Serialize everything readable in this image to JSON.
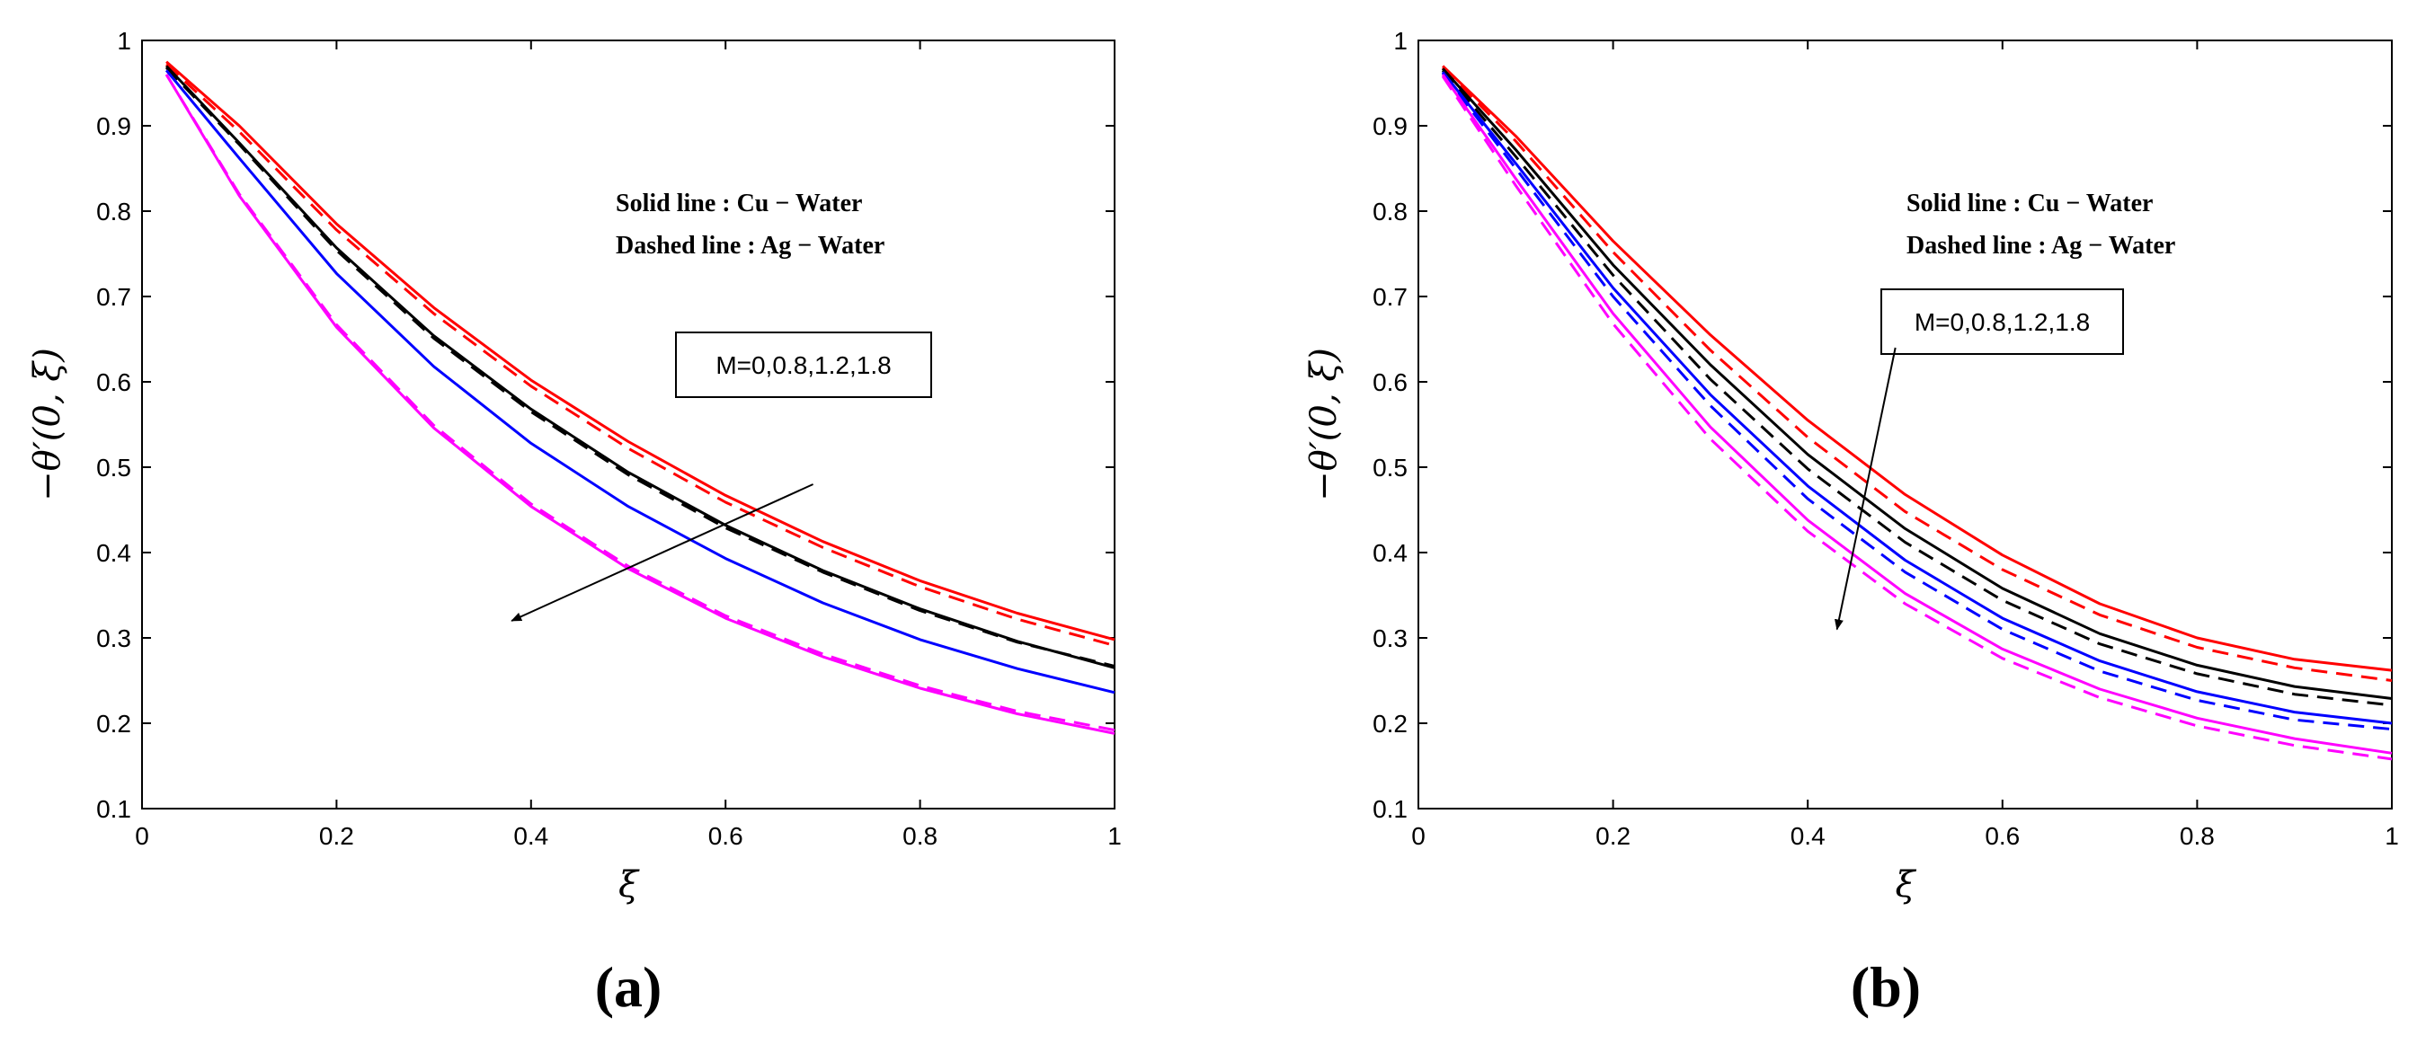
{
  "chart_data": [
    {
      "type": "line",
      "panel_label": "(a)",
      "xlabel": "ξ",
      "ylabel": "−θ′(0, ξ)",
      "xlim": [
        0,
        1
      ],
      "ylim": [
        0.1,
        1
      ],
      "x_ticks": [
        "0",
        "0.2",
        "0.4",
        "0.6",
        "0.8",
        "1"
      ],
      "y_ticks": [
        "0.1",
        "0.2",
        "0.3",
        "0.4",
        "0.5",
        "0.6",
        "0.7",
        "0.8",
        "0.9",
        "1"
      ],
      "legend_lines": [
        "Solid line : Cu − Water",
        "Dashed line : Ag − Water"
      ],
      "annotation": {
        "text": "M=0,0.8,1.2,1.8",
        "arrow_from": [
          0.69,
          0.48
        ],
        "arrow_to": [
          0.38,
          0.32
        ]
      },
      "grid": false,
      "x": [
        0.025,
        0.1,
        0.2,
        0.3,
        0.4,
        0.5,
        0.6,
        0.7,
        0.8,
        0.9,
        1.0
      ],
      "series": [
        {
          "color": "#ff0000",
          "dash": false,
          "values": [
            0.975,
            0.9,
            0.785,
            0.687,
            0.602,
            0.53,
            0.467,
            0.413,
            0.367,
            0.329,
            0.298
          ]
        },
        {
          "color": "#ff0000",
          "dash": true,
          "values": [
            0.972,
            0.893,
            0.778,
            0.68,
            0.595,
            0.522,
            0.459,
            0.406,
            0.36,
            0.322,
            0.291
          ]
        },
        {
          "color": "#000000",
          "dash": false,
          "values": [
            0.97,
            0.88,
            0.757,
            0.654,
            0.568,
            0.494,
            0.432,
            0.379,
            0.334,
            0.296,
            0.265
          ]
        },
        {
          "color": "#000000",
          "dash": true,
          "values": [
            0.968,
            0.878,
            0.754,
            0.651,
            0.565,
            0.491,
            0.429,
            0.377,
            0.332,
            0.295,
            0.267
          ]
        },
        {
          "color": "#0000ff",
          "dash": false,
          "values": [
            0.965,
            0.862,
            0.727,
            0.618,
            0.528,
            0.454,
            0.393,
            0.341,
            0.298,
            0.264,
            0.236
          ]
        },
        {
          "color": "#ff00ff",
          "dash": false,
          "values": [
            0.96,
            0.818,
            0.664,
            0.546,
            0.454,
            0.381,
            0.323,
            0.278,
            0.241,
            0.211,
            0.188
          ]
        },
        {
          "color": "#ff00ff",
          "dash": true,
          "values": [
            0.96,
            0.82,
            0.667,
            0.549,
            0.457,
            0.384,
            0.326,
            0.281,
            0.244,
            0.214,
            0.192
          ]
        }
      ]
    },
    {
      "type": "line",
      "panel_label": "(b)",
      "xlabel": "ξ",
      "ylabel": "−θ′(0, ξ)",
      "xlim": [
        0,
        1
      ],
      "ylim": [
        0.1,
        1
      ],
      "x_ticks": [
        "0",
        "0.2",
        "0.4",
        "0.6",
        "0.8",
        "1"
      ],
      "y_ticks": [
        "0.1",
        "0.2",
        "0.3",
        "0.4",
        "0.5",
        "0.6",
        "0.7",
        "0.8",
        "0.9",
        "1"
      ],
      "legend_lines": [
        "Solid line : Cu − Water",
        "Dashed line : Ag − Water"
      ],
      "annotation": {
        "text": "M=0,0.8,1.2,1.8",
        "arrow_from": [
          0.49,
          0.64
        ],
        "arrow_to": [
          0.43,
          0.31
        ]
      },
      "grid": false,
      "x": [
        0.025,
        0.1,
        0.2,
        0.3,
        0.4,
        0.5,
        0.6,
        0.7,
        0.8,
        0.9,
        1.0
      ],
      "series": [
        {
          "color": "#ff0000",
          "dash": false,
          "values": [
            0.97,
            0.888,
            0.765,
            0.655,
            0.555,
            0.468,
            0.397,
            0.34,
            0.3,
            0.275,
            0.262
          ]
        },
        {
          "color": "#ff0000",
          "dash": true,
          "values": [
            0.968,
            0.882,
            0.752,
            0.637,
            0.535,
            0.448,
            0.38,
            0.327,
            0.289,
            0.265,
            0.25
          ]
        },
        {
          "color": "#000000",
          "dash": false,
          "values": [
            0.967,
            0.872,
            0.737,
            0.62,
            0.515,
            0.428,
            0.358,
            0.305,
            0.268,
            0.243,
            0.229
          ]
        },
        {
          "color": "#000000",
          "dash": true,
          "values": [
            0.965,
            0.864,
            0.725,
            0.603,
            0.498,
            0.412,
            0.344,
            0.293,
            0.258,
            0.234,
            0.221
          ]
        },
        {
          "color": "#0000ff",
          "dash": false,
          "values": [
            0.963,
            0.856,
            0.71,
            0.585,
            0.478,
            0.391,
            0.323,
            0.273,
            0.237,
            0.213,
            0.2
          ]
        },
        {
          "color": "#0000ff",
          "dash": true,
          "values": [
            0.962,
            0.85,
            0.7,
            0.572,
            0.463,
            0.377,
            0.31,
            0.261,
            0.227,
            0.204,
            0.193
          ]
        },
        {
          "color": "#ff00ff",
          "dash": false,
          "values": [
            0.96,
            0.838,
            0.68,
            0.547,
            0.438,
            0.352,
            0.287,
            0.24,
            0.206,
            0.182,
            0.165
          ]
        },
        {
          "color": "#ff00ff",
          "dash": true,
          "values": [
            0.958,
            0.83,
            0.668,
            0.533,
            0.425,
            0.34,
            0.276,
            0.23,
            0.197,
            0.174,
            0.158
          ]
        }
      ]
    }
  ]
}
